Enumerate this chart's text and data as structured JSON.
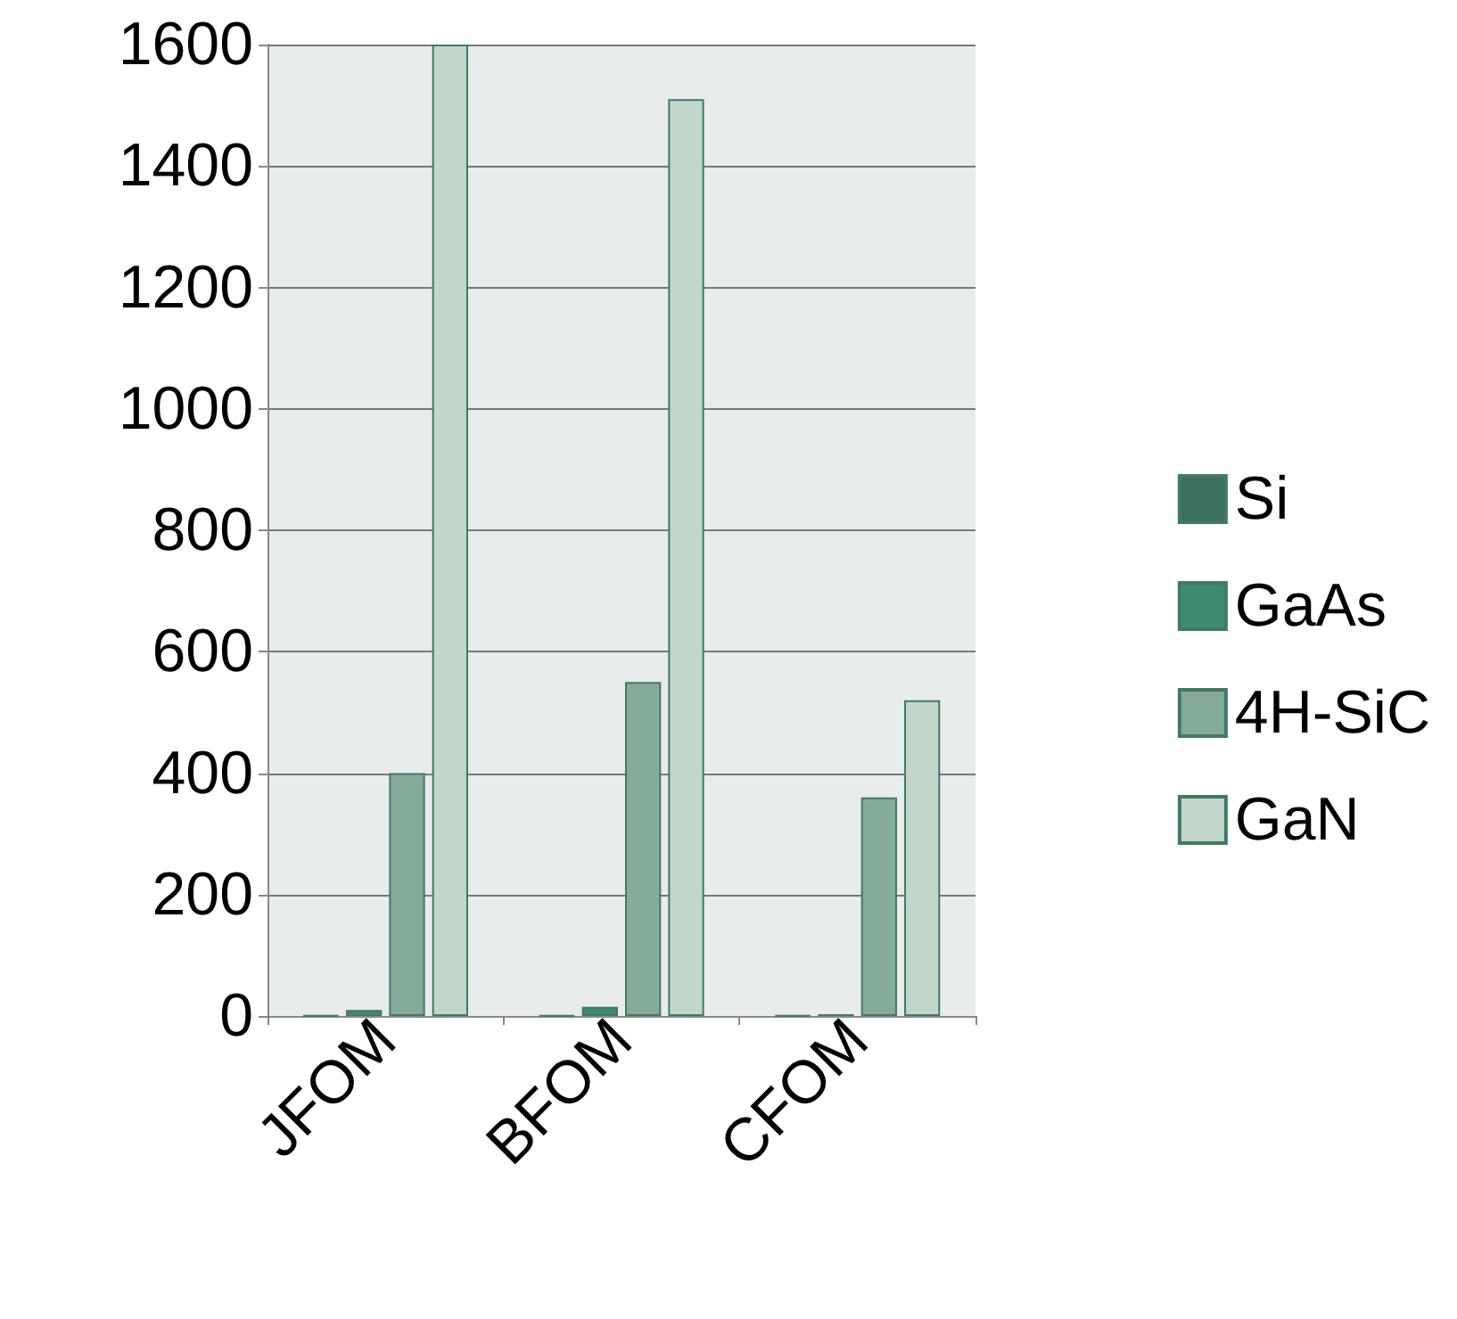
{
  "chart_data": {
    "type": "bar",
    "categories": [
      "JFOM",
      "BFOM",
      "CFOM"
    ],
    "series": [
      {
        "name": "Si",
        "color": "#3b6e5c",
        "values": [
          1,
          1,
          1
        ]
      },
      {
        "name": "GaAs",
        "color": "#3f8a70",
        "values": [
          10,
          15,
          3
        ]
      },
      {
        "name": "4H-SiC",
        "color": "#86ab9a",
        "values": [
          400,
          550,
          360
        ]
      },
      {
        "name": "GaN",
        "color": "#c3d6cc",
        "values": [
          1600,
          1510,
          520
        ]
      }
    ],
    "ylim": [
      0,
      1600
    ],
    "yticks": [
      0,
      200,
      400,
      600,
      800,
      1000,
      1200,
      1400,
      1600
    ],
    "grid": "y",
    "legend": "right"
  }
}
